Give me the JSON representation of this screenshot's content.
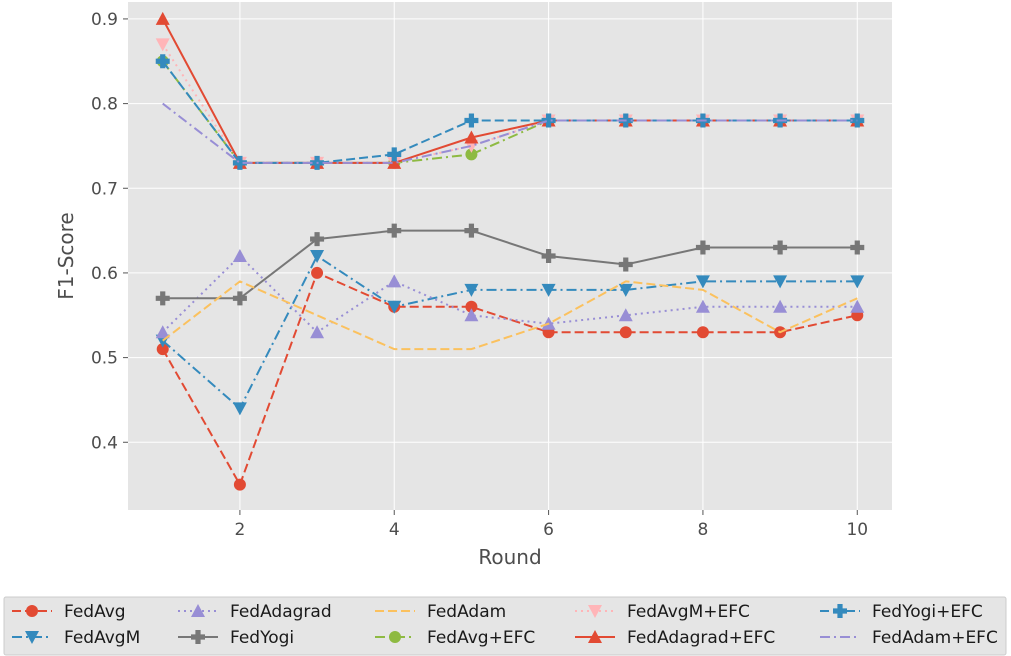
{
  "chart_data": {
    "type": "line",
    "title": "",
    "xlabel": "Round",
    "ylabel": "F1-Score",
    "x": [
      1,
      2,
      3,
      4,
      5,
      6,
      7,
      8,
      9,
      10
    ],
    "xlim": [
      0.55,
      10.45
    ],
    "ylim": [
      0.32,
      0.92
    ],
    "xticks": [
      2,
      4,
      6,
      8,
      10
    ],
    "yticks": [
      0.4,
      0.5,
      0.6,
      0.7,
      0.8,
      0.9
    ],
    "grid": true,
    "legend_position": "bottom",
    "series": [
      {
        "name": "FedAvg",
        "color": "#e24a33",
        "dash": "dashed",
        "marker": "circle",
        "values": [
          0.51,
          0.35,
          0.6,
          0.56,
          0.56,
          0.53,
          0.53,
          0.53,
          0.53,
          0.55
        ]
      },
      {
        "name": "FedAvgM",
        "color": "#348abd",
        "dash": "dashdot",
        "marker": "triangle-down",
        "values": [
          0.52,
          0.44,
          0.62,
          0.56,
          0.58,
          0.58,
          0.58,
          0.59,
          0.59,
          0.59
        ]
      },
      {
        "name": "FedAdagrad",
        "color": "#988ed5",
        "dash": "dotted",
        "marker": "triangle-up",
        "values": [
          0.53,
          0.62,
          0.53,
          0.59,
          0.55,
          0.54,
          0.55,
          0.56,
          0.56,
          0.56
        ]
      },
      {
        "name": "FedYogi",
        "color": "#777777",
        "dash": "solid",
        "marker": "plus",
        "values": [
          0.57,
          0.57,
          0.64,
          0.65,
          0.65,
          0.62,
          0.61,
          0.63,
          0.63,
          0.63
        ]
      },
      {
        "name": "FedAdam",
        "color": "#fbc15e",
        "dash": "dashed",
        "marker": "none",
        "values": [
          0.52,
          0.59,
          0.55,
          0.51,
          0.51,
          0.54,
          0.59,
          0.58,
          0.53,
          0.57
        ]
      },
      {
        "name": "FedAvg+EFC",
        "color": "#8eba42",
        "dash": "dashdot",
        "marker": "circle",
        "values": [
          0.85,
          0.73,
          0.73,
          0.73,
          0.74,
          0.78,
          0.78,
          0.78,
          0.78,
          0.78
        ]
      },
      {
        "name": "FedAvgM+EFC",
        "color": "#ffb5b8",
        "dash": "dotted",
        "marker": "triangle-down",
        "values": [
          0.87,
          0.73,
          0.73,
          0.73,
          0.75,
          0.78,
          0.78,
          0.78,
          0.78,
          0.78
        ]
      },
      {
        "name": "FedAdagrad+EFC",
        "color": "#e24a33",
        "dash": "solid",
        "marker": "triangle-up",
        "values": [
          0.9,
          0.73,
          0.73,
          0.73,
          0.76,
          0.78,
          0.78,
          0.78,
          0.78,
          0.78
        ]
      },
      {
        "name": "FedYogi+EFC",
        "color": "#348abd",
        "dash": "dashed",
        "marker": "plus",
        "values": [
          0.85,
          0.73,
          0.73,
          0.74,
          0.78,
          0.78,
          0.78,
          0.78,
          0.78,
          0.78
        ]
      },
      {
        "name": "FedAdam+EFC",
        "color": "#988ed5",
        "dash": "dashdot",
        "marker": "none",
        "values": [
          0.8,
          0.73,
          0.73,
          0.73,
          0.75,
          0.78,
          0.78,
          0.78,
          0.78,
          0.78
        ]
      }
    ]
  }
}
